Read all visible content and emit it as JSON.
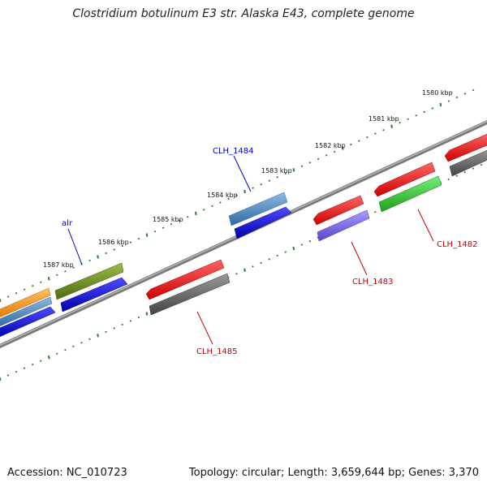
{
  "title": "Clostridium botulinum E3 str. Alaska E43, complete genome",
  "footer": {
    "accession": "Accession: NC_010723",
    "summary": "Topology: circular; Length: 3,659,644 bp; Genes: 3,370"
  },
  "ticks": [
    "1580 kbp",
    "1581 kbp",
    "1582 kbp",
    "1583 kbp",
    "1584 kbp",
    "1585 kbp",
    "1586 kbp",
    "1587 kbp"
  ],
  "genes": [
    {
      "label": "CLH_1482",
      "strand": "reverse",
      "color": "#cc0000"
    },
    {
      "label": "CLH_1483",
      "strand": "reverse",
      "color": "#cc0000"
    },
    {
      "label": "CLH_1484",
      "strand": "forward",
      "color": "#0000cc"
    },
    {
      "label": "CLH_1485",
      "strand": "reverse",
      "color": "#cc0000"
    },
    {
      "label": "alr",
      "strand": "forward",
      "color": "#0000cc"
    }
  ],
  "colors": {
    "backbone": "#8a8a8a",
    "tick_mark": "#2e7d2e",
    "red": "#ff0000",
    "grey": "#666666",
    "blue": "#0000ff",
    "steelblue": "#4a86c0",
    "olive": "#6b8e23",
    "green": "#33cc33",
    "slate": "#7b68ee",
    "orange": "#ff9900"
  }
}
